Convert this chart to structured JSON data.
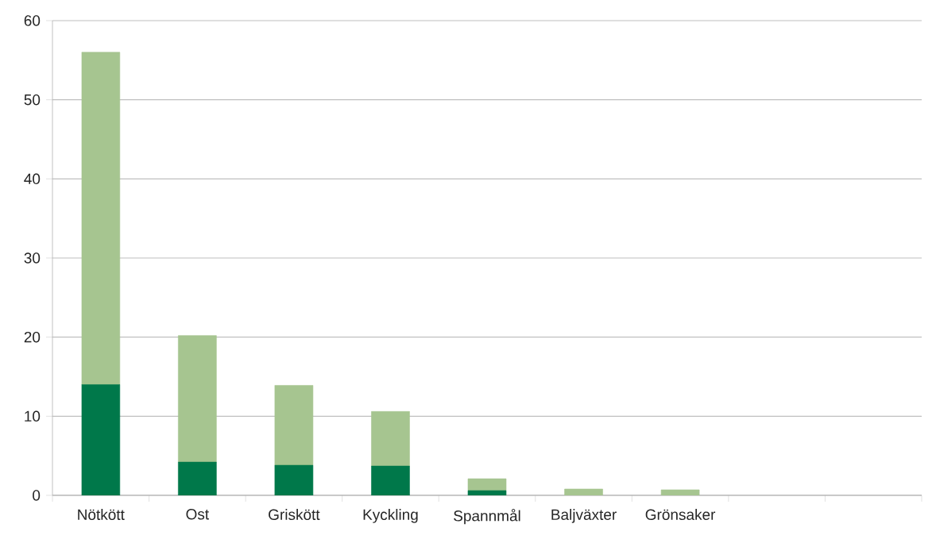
{
  "chart_data": {
    "type": "bar",
    "stacked": true,
    "categories": [
      "Nötkött",
      "Ost",
      "Griskött",
      "Kyckling",
      "Spannmål",
      "Baljväxter",
      "Grönsaker",
      null,
      null
    ],
    "series": [
      {
        "color": "#00784a",
        "values": [
          14,
          4.2,
          3.8,
          3.7,
          0.6,
          0,
          0,
          null,
          null
        ]
      },
      {
        "color": "#a6c590",
        "values": [
          42,
          16,
          10.1,
          6.9,
          1.5,
          0.8,
          0.7,
          null,
          null
        ]
      }
    ],
    "ylim": [
      0,
      60
    ],
    "yticks": [
      0,
      10,
      20,
      30,
      40,
      50,
      60
    ],
    "grid": "y"
  }
}
